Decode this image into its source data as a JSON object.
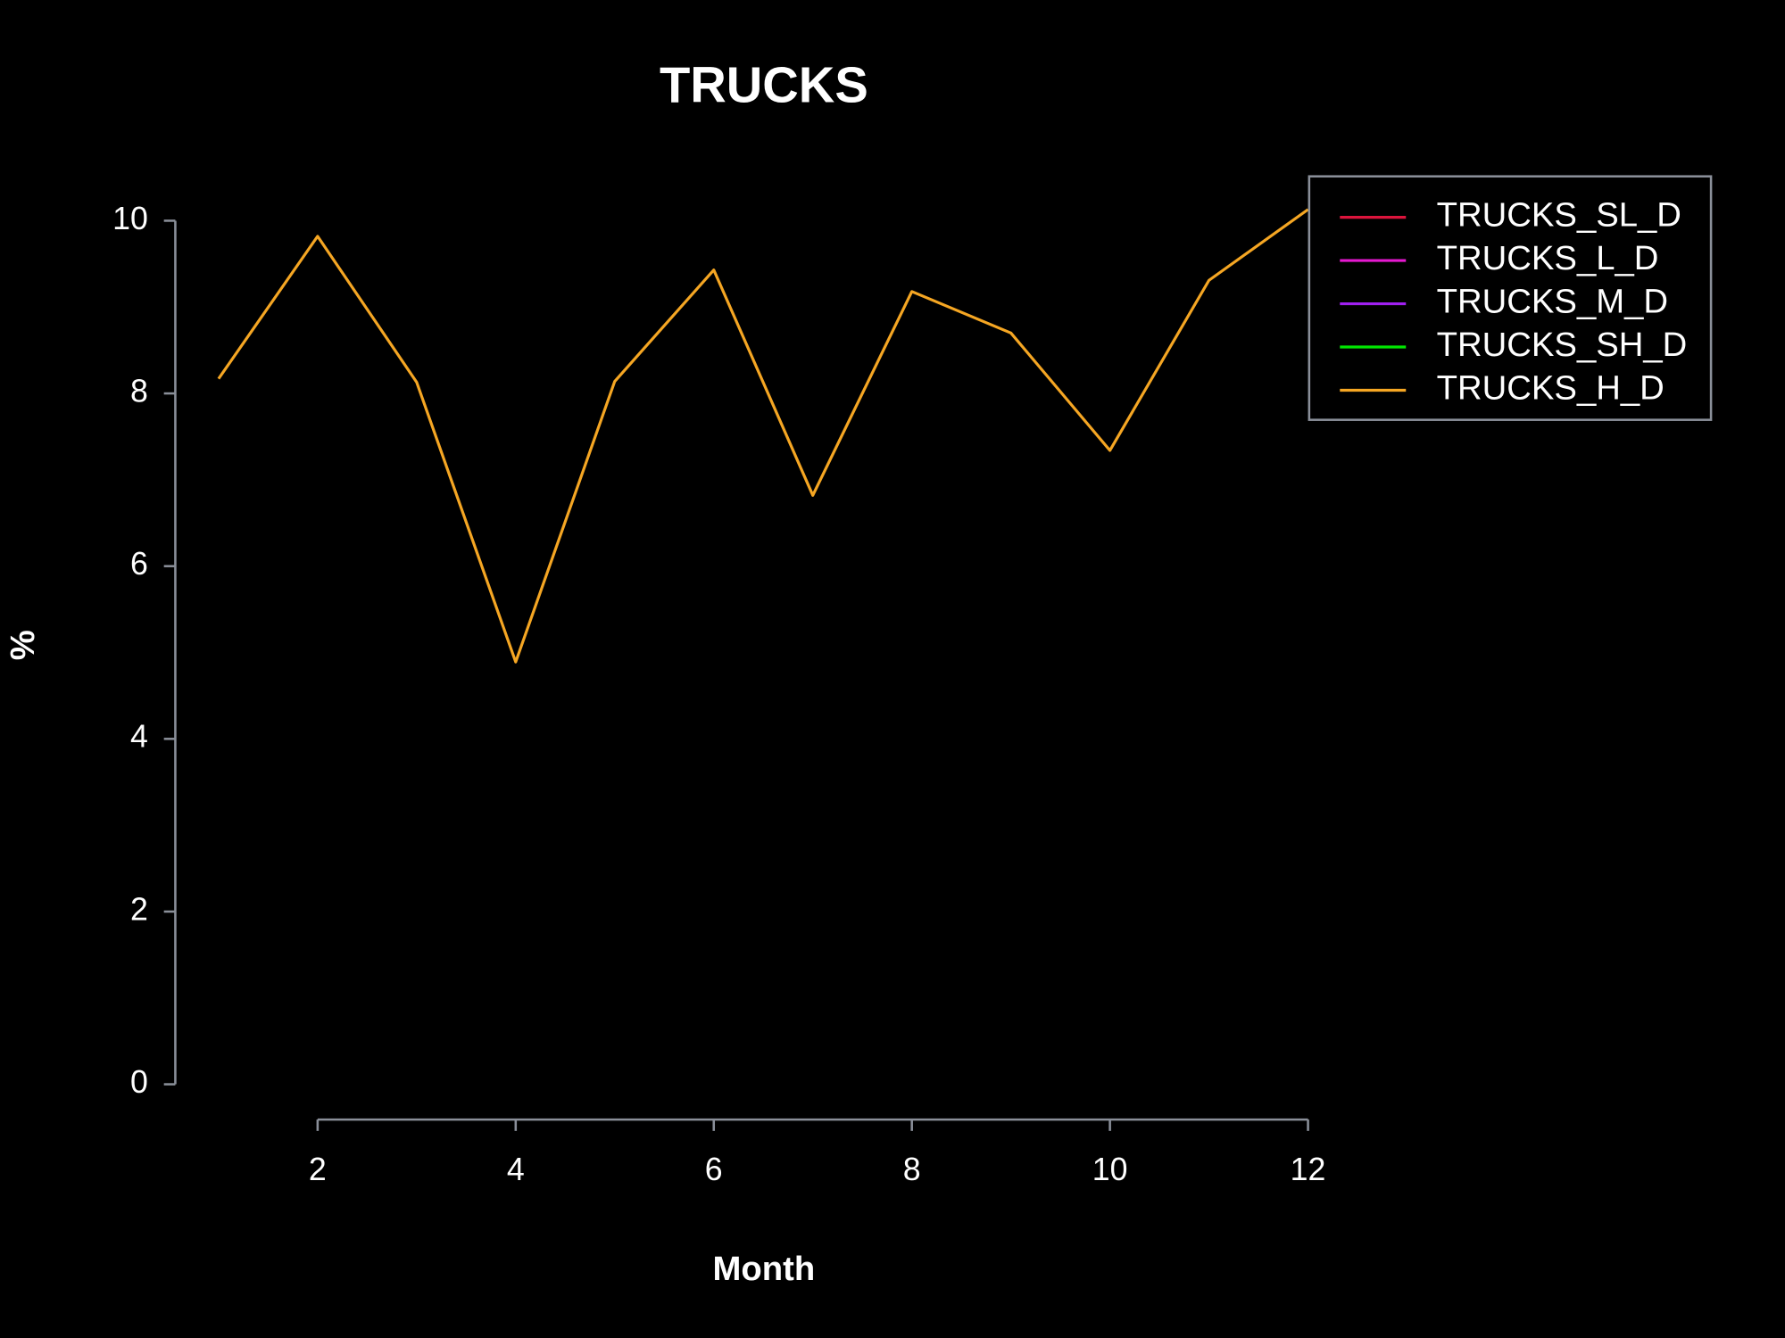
{
  "chart_data": {
    "type": "line",
    "title": "TRUCKS",
    "x_label": "Month",
    "y_label": "%",
    "x": [
      1,
      2,
      3,
      4,
      5,
      6,
      7,
      8,
      9,
      10,
      11,
      12
    ],
    "series": [
      {
        "name": "TRUCKS_SL_D",
        "color": "#dc143c",
        "values": [
          null,
          null,
          null,
          null,
          null,
          null,
          null,
          null,
          null,
          null,
          null,
          null
        ]
      },
      {
        "name": "TRUCKS_L_D",
        "color": "#e619d0",
        "values": [
          null,
          null,
          null,
          null,
          null,
          null,
          null,
          null,
          null,
          null,
          null,
          null
        ]
      },
      {
        "name": "TRUCKS_M_D",
        "color": "#a020f0",
        "values": [
          null,
          null,
          null,
          null,
          null,
          null,
          null,
          null,
          null,
          null,
          null,
          null
        ]
      },
      {
        "name": "TRUCKS_SH_D",
        "color": "#00e600",
        "values": [
          null,
          null,
          null,
          null,
          null,
          null,
          null,
          null,
          null,
          null,
          null,
          null
        ]
      },
      {
        "name": "TRUCKS_H_D",
        "color": "#f5a623",
        "values": [
          8.17,
          9.82,
          8.13,
          4.89,
          8.14,
          9.43,
          6.82,
          9.18,
          8.7,
          7.34,
          9.31,
          10.13
        ]
      }
    ],
    "xlim": [
      1,
      12
    ],
    "xticks": [
      2,
      4,
      6,
      8,
      10,
      12
    ],
    "ylim": [
      0,
      10
    ],
    "yticks": [
      0,
      2,
      4,
      6,
      8,
      10
    ],
    "legend_position": "top-right"
  }
}
